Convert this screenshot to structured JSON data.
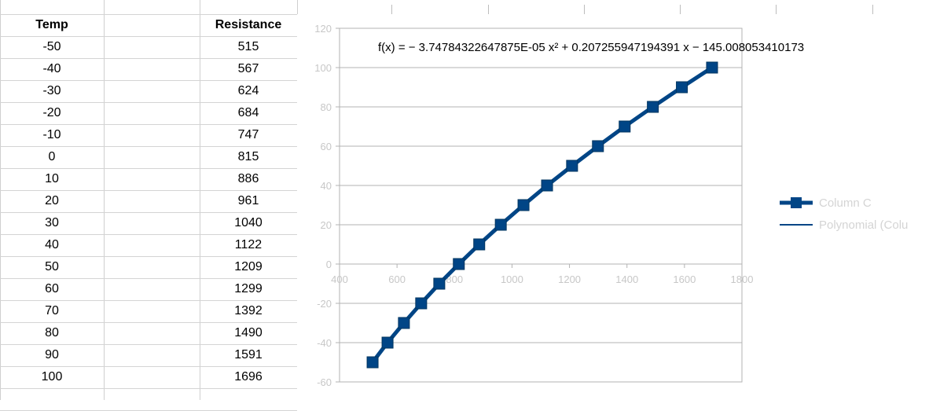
{
  "table": {
    "headers": {
      "temp": "Temp",
      "resistance": "Resistance"
    },
    "rows": [
      {
        "temp": "-50",
        "resistance": "515"
      },
      {
        "temp": "-40",
        "resistance": "567"
      },
      {
        "temp": "-30",
        "resistance": "624"
      },
      {
        "temp": "-20",
        "resistance": "684"
      },
      {
        "temp": "-10",
        "resistance": "747"
      },
      {
        "temp": "0",
        "resistance": "815"
      },
      {
        "temp": "10",
        "resistance": "886"
      },
      {
        "temp": "20",
        "resistance": "961"
      },
      {
        "temp": "30",
        "resistance": "1040"
      },
      {
        "temp": "40",
        "resistance": "1122"
      },
      {
        "temp": "50",
        "resistance": "1209"
      },
      {
        "temp": "60",
        "resistance": "1299"
      },
      {
        "temp": "70",
        "resistance": "1392"
      },
      {
        "temp": "80",
        "resistance": "1490"
      },
      {
        "temp": "90",
        "resistance": "1591"
      },
      {
        "temp": "100",
        "resistance": "1696"
      }
    ]
  },
  "chart_data": {
    "type": "line",
    "title": "",
    "xlabel": "",
    "ylabel": "",
    "xlim": [
      400,
      1800
    ],
    "ylim": [
      -60,
      120
    ],
    "x_ticks": [
      "400",
      "600",
      "800",
      "1000",
      "1200",
      "1400",
      "1600",
      "1800"
    ],
    "y_ticks": [
      "120",
      "100",
      "80",
      "60",
      "40",
      "20",
      "0",
      "-20",
      "-40",
      "-60"
    ],
    "grid": true,
    "legend_position": "right",
    "equation": "f(x) = − 3.74784322647875E-05 x² + 0.207255947194391 x − 145.008053410173",
    "series": [
      {
        "name": "Column C",
        "color": "#004586",
        "marker": "square",
        "x": [
          515,
          567,
          624,
          684,
          747,
          815,
          886,
          961,
          1040,
          1122,
          1209,
          1299,
          1392,
          1490,
          1591,
          1696
        ],
        "y": [
          -50,
          -40,
          -30,
          -20,
          -10,
          0,
          10,
          20,
          30,
          40,
          50,
          60,
          70,
          80,
          90,
          100
        ]
      }
    ],
    "legend": [
      "Column C",
      "Polynomial (Colu"
    ],
    "trendline_color": "#004586"
  }
}
